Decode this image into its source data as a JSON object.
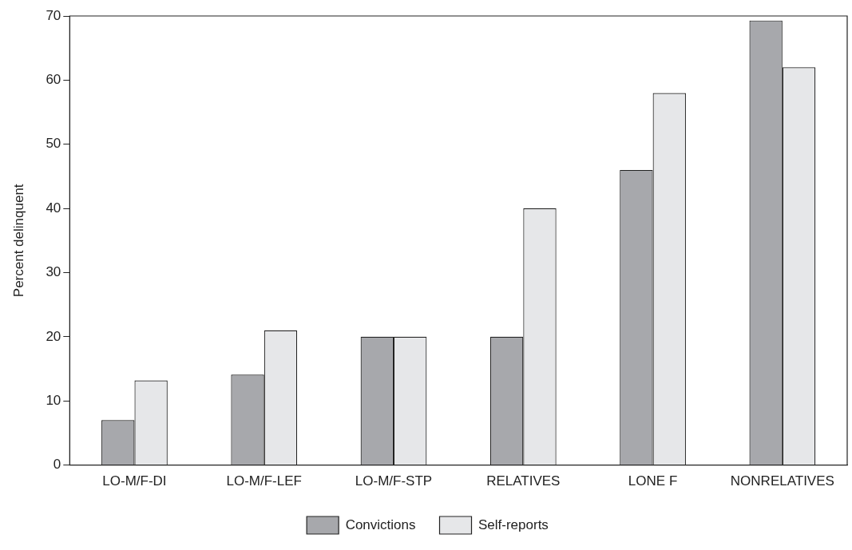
{
  "chart_data": {
    "type": "bar",
    "ylabel": "Percent delinquent",
    "categories": [
      "LO-M/F-DI",
      "LO-M/F-LEF",
      "LO-M/F-STP",
      "RELATIVES",
      "LONE F",
      "NONRELATIVES"
    ],
    "series": [
      {
        "name": "Convictions",
        "color": "#a7a8ac",
        "values": [
          7,
          14.1,
          20,
          20,
          46,
          69.3
        ]
      },
      {
        "name": "Self-reports",
        "color": "#e6e7e9",
        "values": [
          13.2,
          21,
          20,
          40,
          58,
          62
        ]
      }
    ],
    "ylim": [
      0,
      70
    ],
    "yticks": [
      0,
      10,
      20,
      30,
      40,
      50,
      60,
      70
    ],
    "grid": false,
    "legend": "bottom"
  }
}
